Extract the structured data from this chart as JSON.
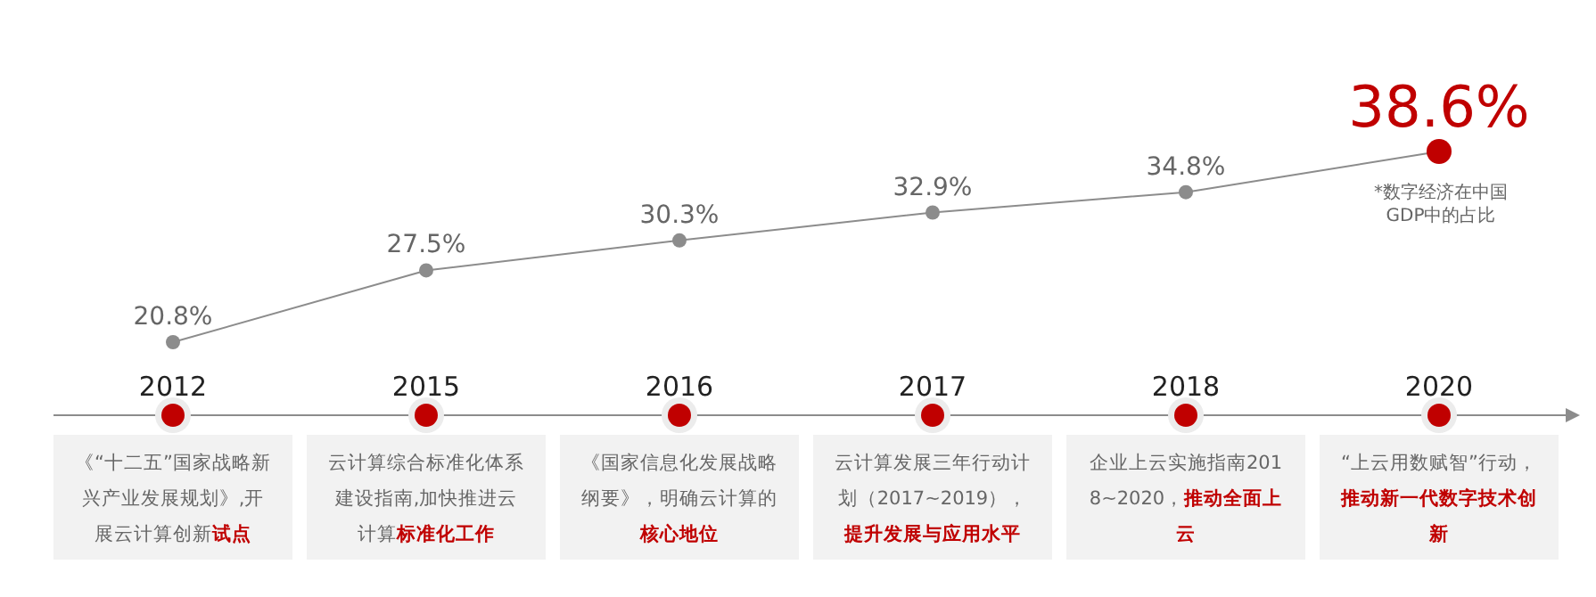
{
  "chart_data": {
    "type": "line",
    "categories": [
      "2012",
      "2015",
      "2016",
      "2017",
      "2018",
      "2020"
    ],
    "series": [
      {
        "color": "#8c8c8c",
        "values": [
          20.8,
          27.5,
          30.3,
          32.9,
          34.8,
          38.6
        ],
        "colors": [
          "#8c8c8c",
          "#8c8c8c",
          "#8c8c8c",
          "#8c8c8c",
          "#8c8c8c",
          "#c00000"
        ],
        "value_labels": [
          "20.8%",
          "27.5%",
          "30.3%",
          "32.9%",
          "34.8%",
          "38.6%"
        ]
      }
    ],
    "marker": "circle",
    "line_style": "solid",
    "tick_labels": "x",
    "annotations": [
      "《“十二五”国家战略新兴产业发展规划》,开展云计算创新",
      "试点",
      "云计算综合标准化体系建设指南,加快推进云计算",
      "标准化工作",
      "《国家信息化发展战略纲要》，明确云计算的",
      "核心地位",
      "云计算发展三年行动计划（2017~2019），",
      "提升发展与应用水平",
      "企业上云实施指南2018~2020，",
      "推动全面上云",
      "“上云用数赋智”行动，",
      "推动新一代数字技术创新",
      "*数字经济在中国GDP中的占比"
    ]
  }
}
